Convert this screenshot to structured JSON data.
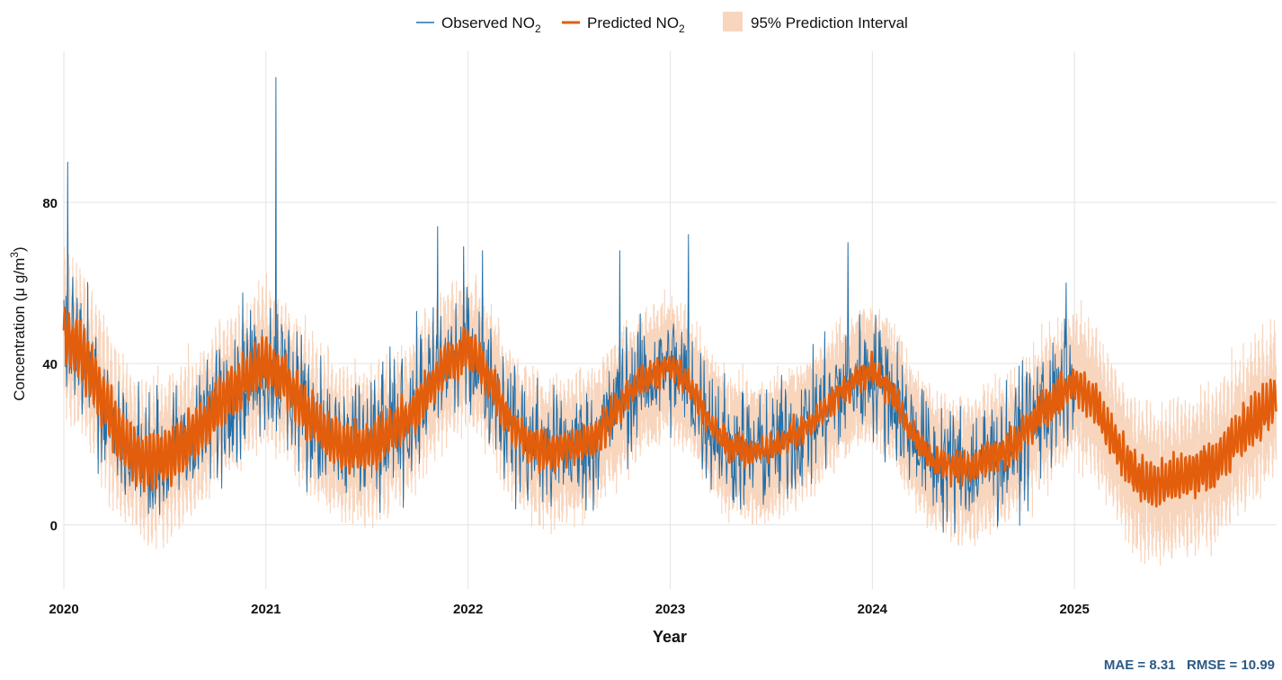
{
  "chart_data": {
    "type": "line",
    "title": "",
    "xlabel": "Year",
    "ylabel": "Concentration (μ g/m³)",
    "ylabel_parts": {
      "main": "Concentration (μ g/m",
      "sup": "3",
      "close": ")"
    },
    "xlim": [
      2020.0,
      2026.0
    ],
    "ylim": [
      -16,
      117.5
    ],
    "x_ticks": [
      2020,
      2021,
      2022,
      2023,
      2024,
      2025
    ],
    "x_tick_labels": [
      "2020",
      "2021",
      "2022",
      "2023",
      "2024",
      "2025"
    ],
    "y_ticks": [
      0,
      40,
      80
    ],
    "y_tick_labels": [
      "0",
      "40",
      "80"
    ],
    "grid": true,
    "legend": {
      "position": "top",
      "entries": [
        {
          "key": "observed",
          "label": "Observed NO",
          "sub": "2",
          "kind": "line"
        },
        {
          "key": "predicted",
          "label": "Predicted NO",
          "sub": "2",
          "kind": "line"
        },
        {
          "key": "interval",
          "label": "95% Prediction Interval",
          "sub": "",
          "kind": "fill"
        }
      ]
    },
    "colors": {
      "observed": "#2470a9",
      "predicted": "#e25e0c",
      "interval": "#f8d5bd",
      "grid": "#e3e3e3",
      "metrics": "#2b5a85"
    },
    "annotation": {
      "text": "MAE = 8.31   RMSE = 10.99",
      "position": "bottom-right"
    },
    "series": [
      {
        "name": "Predicted NO2",
        "resolution": "approx. every 0.1 year (trend read from chart; daily values oscillate around it)",
        "x": [
          2020.0,
          2020.1,
          2020.2,
          2020.3,
          2020.4,
          2020.5,
          2020.6,
          2020.7,
          2020.8,
          2020.9,
          2021.0,
          2021.1,
          2021.2,
          2021.3,
          2021.4,
          2021.5,
          2021.6,
          2021.7,
          2021.8,
          2021.9,
          2022.0,
          2022.1,
          2022.2,
          2022.3,
          2022.4,
          2022.5,
          2022.6,
          2022.7,
          2022.8,
          2022.9,
          2023.0,
          2023.1,
          2023.2,
          2023.3,
          2023.4,
          2023.5,
          2023.6,
          2023.7,
          2023.8,
          2023.9,
          2024.0,
          2024.1,
          2024.2,
          2024.3,
          2024.4,
          2024.5,
          2024.6,
          2024.7,
          2024.8,
          2024.9,
          2025.0,
          2025.1,
          2025.2,
          2025.3,
          2025.4,
          2025.5,
          2025.6,
          2025.7,
          2025.8,
          2025.9,
          2026.0
        ],
        "values": [
          47,
          42,
          30,
          20,
          15,
          17,
          20,
          25,
          32,
          36,
          40,
          36,
          28,
          22,
          19,
          19,
          22,
          26,
          33,
          40,
          44,
          37,
          26,
          20,
          18,
          19,
          21,
          26,
          33,
          37,
          40,
          34,
          25,
          19,
          18,
          19,
          22,
          25,
          31,
          35,
          38,
          33,
          22,
          16,
          14,
          15,
          17,
          20,
          26,
          31,
          35,
          30,
          20,
          12,
          10,
          11,
          13,
          15,
          22,
          26,
          32
        ]
      },
      {
        "name": "95% Prediction Interval",
        "description": "predicted ± half_width",
        "half_width": 13
      },
      {
        "name": "Observed NO2",
        "x_range": [
          2020.0,
          2025.0
        ],
        "description": "daily observations scattered around prediction, noise sd ≈ 8",
        "noise_sd": 8,
        "notable_points": [
          {
            "x": 2020.02,
            "y": 90
          },
          {
            "x": 2021.05,
            "y": 111
          },
          {
            "x": 2021.85,
            "y": 74
          },
          {
            "x": 2022.07,
            "y": 68
          },
          {
            "x": 2022.75,
            "y": 68
          },
          {
            "x": 2023.09,
            "y": 72
          },
          {
            "x": 2023.88,
            "y": 70
          },
          {
            "x": 2024.96,
            "y": 60
          }
        ]
      }
    ]
  }
}
